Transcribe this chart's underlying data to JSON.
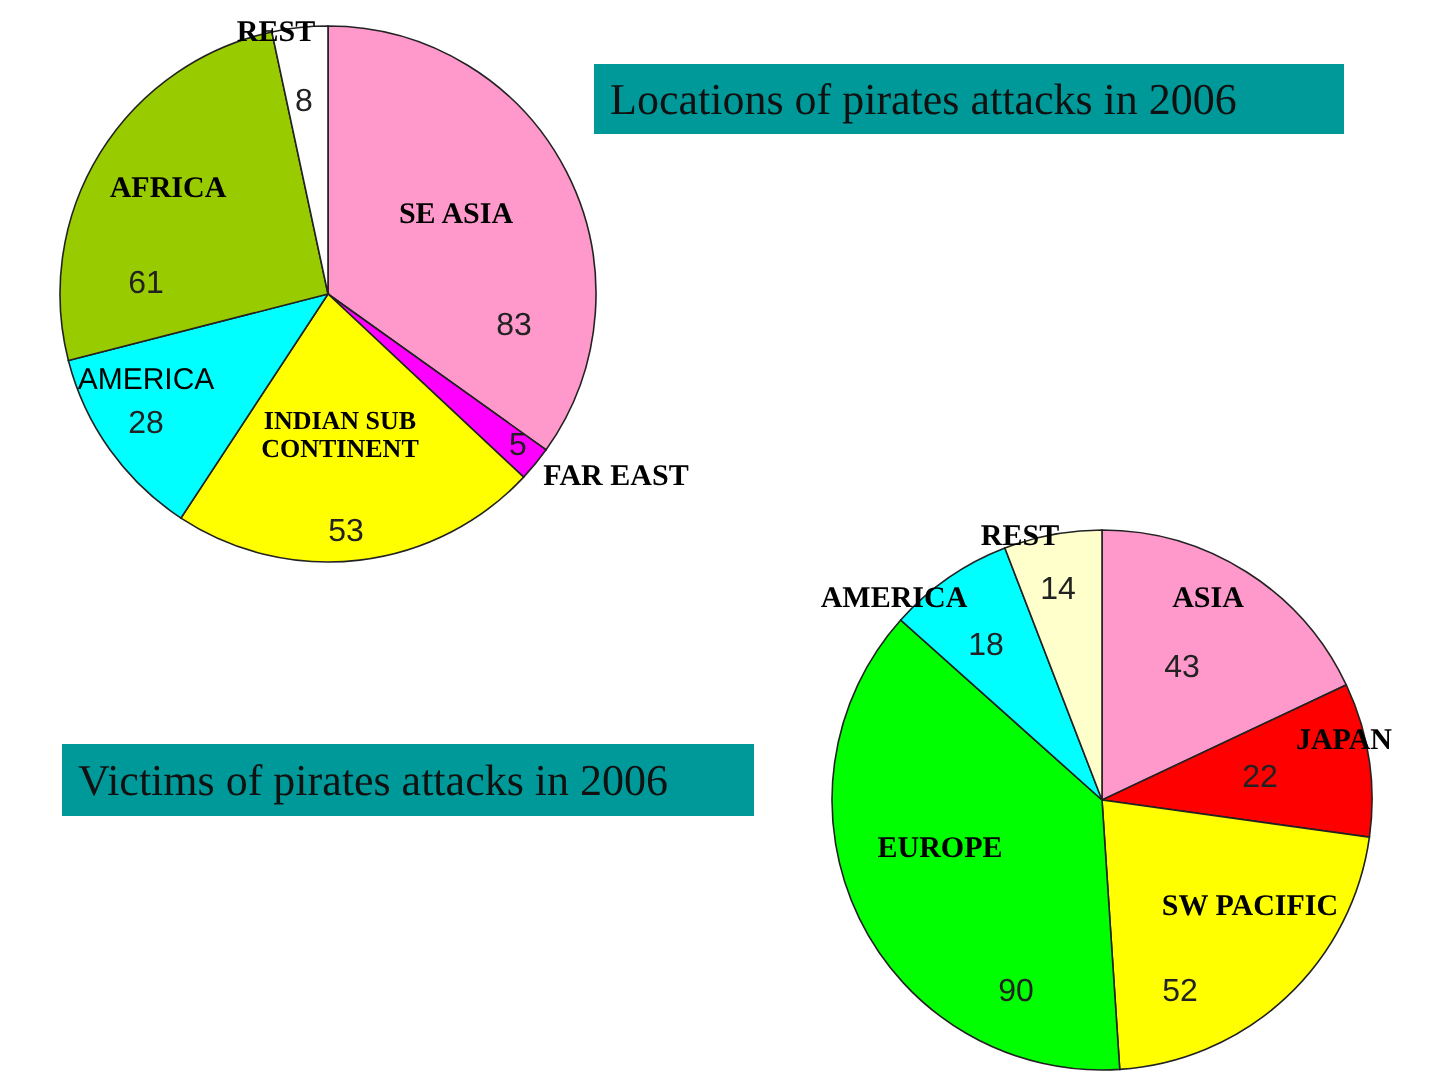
{
  "chart_data": [
    {
      "type": "pie",
      "title": "Locations of pirates attacks in 2006",
      "categories": [
        "SE ASIA",
        "FAR EAST",
        "INDIAN SUB CONTINENT",
        "AMERICA",
        "AFRICA",
        "REST"
      ],
      "values": [
        83,
        5,
        53,
        28,
        61,
        8
      ],
      "colors": [
        "#ff99cc",
        "#ff00ff",
        "#ffff00",
        "#00ffff",
        "#99cc00",
        "#ffffff"
      ],
      "data_labels": true
    },
    {
      "type": "pie",
      "title": "Victims of pirates attacks in 2006",
      "categories": [
        "ASIA",
        "JAPAN",
        "SW PACIFIC",
        "EUROPE",
        "AMERICA",
        "REST"
      ],
      "values": [
        43,
        22,
        52,
        90,
        18,
        14
      ],
      "colors": [
        "#ff99cc",
        "#ff0000",
        "#ffff00",
        "#00ff00",
        "#00ffff",
        "#ffffcc"
      ],
      "data_labels": true
    }
  ]
}
